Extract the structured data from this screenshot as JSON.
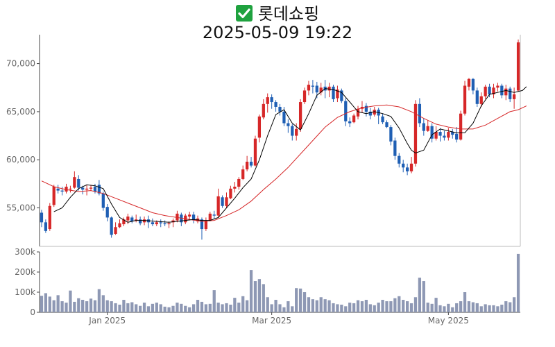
{
  "header": {
    "title_icon": "check-mark-icon",
    "title": "롯데쇼핑",
    "subtitle": "2025-05-09 19:22"
  },
  "colors": {
    "up": "#d62728",
    "down": "#1f5fb4",
    "ma_short": "#000000",
    "ma_long": "#d62728",
    "volume": "#8e98b4",
    "axis": "#666666"
  },
  "chart_data": {
    "type": "candlestick",
    "price_axis": {
      "ylim": [
        51000,
        73000
      ],
      "ticks": [
        55000,
        60000,
        65000,
        70000
      ],
      "tick_labels": [
        "55,000",
        "60,000",
        "65,000",
        "70,000"
      ]
    },
    "volume_axis": {
      "ylim": [
        0,
        300000
      ],
      "ticks": [
        0,
        100000,
        200000,
        300000
      ],
      "tick_labels": [
        "0",
        "100k",
        "200k",
        "300k"
      ]
    },
    "x_ticks": [
      {
        "index": 16,
        "label": "Jan 2025"
      },
      {
        "index": 56,
        "label": "Mar 2025"
      },
      {
        "index": 99,
        "label": "May 2025"
      }
    ],
    "candles": [
      [
        54500,
        53500,
        54800,
        53000,
        82000
      ],
      [
        53500,
        52600,
        53800,
        52400,
        95000
      ],
      [
        52800,
        55200,
        55500,
        52600,
        78000
      ],
      [
        55300,
        57200,
        57400,
        55100,
        60000
      ],
      [
        57000,
        56800,
        57400,
        56500,
        85000
      ],
      [
        56800,
        56700,
        57200,
        56300,
        55000
      ],
      [
        56700,
        57200,
        57500,
        56500,
        48000
      ],
      [
        57000,
        57000,
        57300,
        56600,
        108000
      ],
      [
        57100,
        58200,
        58800,
        57000,
        52000
      ],
      [
        58000,
        57100,
        58400,
        56800,
        70000
      ],
      [
        57100,
        56900,
        57300,
        56400,
        62000
      ],
      [
        56900,
        57000,
        57400,
        56300,
        55000
      ],
      [
        57000,
        57100,
        57400,
        56800,
        68000
      ],
      [
        57200,
        56700,
        57500,
        56500,
        60000
      ],
      [
        57400,
        56500,
        57900,
        56300,
        115000
      ],
      [
        56500,
        55000,
        56700,
        54700,
        85000
      ],
      [
        55100,
        54000,
        55400,
        53600,
        60000
      ],
      [
        54000,
        52200,
        54100,
        51900,
        55000
      ],
      [
        52300,
        53000,
        53500,
        52200,
        45000
      ],
      [
        53000,
        53400,
        53800,
        52900,
        38000
      ],
      [
        53300,
        53800,
        54000,
        53100,
        62000
      ],
      [
        53700,
        54100,
        54400,
        53300,
        45000
      ],
      [
        54000,
        53600,
        54200,
        53400,
        50000
      ],
      [
        53700,
        53800,
        54300,
        53500,
        40000
      ],
      [
        53800,
        53400,
        54100,
        53200,
        32000
      ],
      [
        53500,
        53800,
        54100,
        53200,
        48000
      ],
      [
        53800,
        53500,
        54200,
        52900,
        30000
      ],
      [
        53500,
        53300,
        53900,
        53100,
        42000
      ],
      [
        53300,
        53500,
        53700,
        53100,
        48000
      ],
      [
        53500,
        53400,
        53800,
        53000,
        40000
      ],
      [
        53400,
        53300,
        53700,
        53100,
        28000
      ],
      [
        53300,
        53400,
        53600,
        52900,
        25000
      ],
      [
        53500,
        53700,
        53900,
        53000,
        32000
      ],
      [
        53700,
        54400,
        54700,
        53500,
        48000
      ],
      [
        54300,
        53500,
        54500,
        53100,
        42000
      ],
      [
        53500,
        54200,
        54400,
        53300,
        32000
      ],
      [
        54100,
        54300,
        54600,
        53700,
        25000
      ],
      [
        54300,
        53700,
        54600,
        53400,
        40000
      ],
      [
        53600,
        53900,
        54200,
        53400,
        62000
      ],
      [
        53800,
        52800,
        54000,
        51700,
        52000
      ],
      [
        52800,
        53700,
        54000,
        52600,
        40000
      ],
      [
        53700,
        54400,
        54600,
        53600,
        42000
      ],
      [
        54300,
        54200,
        54700,
        53900,
        110000
      ],
      [
        54200,
        56200,
        57000,
        54000,
        48000
      ],
      [
        56100,
        55200,
        56300,
        55000,
        40000
      ],
      [
        55200,
        56100,
        56600,
        55000,
        45000
      ],
      [
        56000,
        57000,
        57300,
        55900,
        38000
      ],
      [
        57000,
        57200,
        57700,
        56600,
        72000
      ],
      [
        57200,
        58000,
        58200,
        56900,
        48000
      ],
      [
        58000,
        59000,
        59400,
        57900,
        80000
      ],
      [
        59000,
        59800,
        60400,
        58800,
        60000
      ],
      [
        59800,
        59400,
        60300,
        59200,
        210000
      ],
      [
        59400,
        62200,
        62500,
        59300,
        155000
      ],
      [
        62300,
        64500,
        64700,
        61800,
        165000
      ],
      [
        64400,
        65800,
        66300,
        64200,
        140000
      ],
      [
        65800,
        66500,
        66900,
        64900,
        75000
      ],
      [
        66500,
        66000,
        66800,
        65300,
        40000
      ],
      [
        66000,
        65500,
        66200,
        65000,
        62000
      ],
      [
        65500,
        65000,
        65800,
        64600,
        40000
      ],
      [
        65000,
        63800,
        65500,
        63500,
        25000
      ],
      [
        63800,
        63500,
        64200,
        62800,
        55000
      ],
      [
        63500,
        62500,
        63700,
        62000,
        30000
      ],
      [
        62500,
        63200,
        63800,
        62000,
        120000
      ],
      [
        63200,
        66000,
        66300,
        62900,
        118000
      ],
      [
        66000,
        67200,
        67500,
        65800,
        100000
      ],
      [
        67200,
        67800,
        68200,
        66700,
        75000
      ],
      [
        67700,
        67600,
        68300,
        66900,
        65000
      ],
      [
        67700,
        67000,
        68100,
        66400,
        60000
      ],
      [
        67000,
        67500,
        68000,
        66700,
        75000
      ],
      [
        67600,
        67200,
        68300,
        66400,
        65000
      ],
      [
        67200,
        67600,
        68000,
        66500,
        60000
      ],
      [
        67600,
        66300,
        67800,
        66000,
        45000
      ],
      [
        66400,
        67300,
        67700,
        66000,
        40000
      ],
      [
        67200,
        66100,
        67400,
        65900,
        38000
      ],
      [
        66100,
        64000,
        66400,
        63500,
        30000
      ],
      [
        64000,
        63800,
        64400,
        63400,
        48000
      ],
      [
        63900,
        64600,
        64800,
        63800,
        45000
      ],
      [
        64500,
        65300,
        65600,
        64200,
        60000
      ],
      [
        65300,
        65500,
        66100,
        64900,
        55000
      ],
      [
        65600,
        65000,
        65900,
        64500,
        62000
      ],
      [
        65000,
        64600,
        65400,
        64200,
        40000
      ],
      [
        64700,
        65200,
        65500,
        64500,
        35000
      ],
      [
        65200,
        64600,
        65400,
        63700,
        48000
      ],
      [
        64500,
        63900,
        64800,
        63700,
        62000
      ],
      [
        63900,
        63400,
        64100,
        63300,
        55000
      ],
      [
        63400,
        61900,
        63600,
        61500,
        55000
      ],
      [
        62000,
        60400,
        62300,
        60000,
        70000
      ],
      [
        60400,
        59600,
        60700,
        59200,
        80000
      ],
      [
        59600,
        59200,
        60000,
        58700,
        62000
      ],
      [
        59200,
        58800,
        59600,
        58400,
        55000
      ],
      [
        58800,
        59600,
        60300,
        58600,
        45000
      ],
      [
        59600,
        65800,
        66200,
        59300,
        75000
      ],
      [
        65800,
        63800,
        66400,
        63400,
        172000
      ],
      [
        63800,
        63000,
        64300,
        62500,
        155000
      ],
      [
        63000,
        63500,
        64100,
        62900,
        48000
      ],
      [
        63500,
        62200,
        63800,
        61800,
        42000
      ],
      [
        62200,
        62900,
        63500,
        62000,
        72000
      ],
      [
        62900,
        62500,
        63300,
        61900,
        35000
      ],
      [
        62500,
        62300,
        63000,
        62000,
        30000
      ],
      [
        62300,
        62900,
        63300,
        62000,
        42000
      ],
      [
        62900,
        62600,
        63200,
        62200,
        25000
      ],
      [
        62700,
        62100,
        63400,
        61800,
        45000
      ],
      [
        62100,
        64800,
        65100,
        62000,
        55000
      ],
      [
        64800,
        67700,
        68200,
        64600,
        100000
      ],
      [
        67600,
        68400,
        68500,
        67200,
        55000
      ],
      [
        68400,
        67200,
        68500,
        66800,
        50000
      ],
      [
        67200,
        65800,
        67500,
        65500,
        45000
      ],
      [
        65800,
        66600,
        67000,
        65500,
        30000
      ],
      [
        66600,
        67600,
        67800,
        66300,
        40000
      ],
      [
        67600,
        66800,
        67900,
        66500,
        35000
      ],
      [
        66800,
        67500,
        67900,
        66400,
        35000
      ],
      [
        67500,
        67700,
        68000,
        67100,
        30000
      ],
      [
        67700,
        66700,
        67900,
        66400,
        38000
      ],
      [
        66700,
        67400,
        67800,
        66200,
        55000
      ],
      [
        67400,
        66300,
        67600,
        66000,
        50000
      ],
      [
        66300,
        66800,
        67500,
        65300,
        75000
      ],
      [
        67200,
        72200,
        72500,
        67100,
        290000
      ]
    ],
    "ma_short": [
      [
        3,
        54600
      ],
      [
        5,
        55000
      ],
      [
        7,
        56100
      ],
      [
        9,
        57000
      ],
      [
        11,
        57400
      ],
      [
        13,
        57300
      ],
      [
        15,
        57000
      ],
      [
        17,
        55400
      ],
      [
        19,
        54000
      ],
      [
        21,
        53500
      ],
      [
        23,
        53700
      ],
      [
        25,
        53700
      ],
      [
        28,
        53600
      ],
      [
        31,
        53500
      ],
      [
        33,
        53600
      ],
      [
        35,
        53700
      ],
      [
        37,
        53800
      ],
      [
        39,
        53700
      ],
      [
        41,
        53700
      ],
      [
        43,
        54000
      ],
      [
        45,
        55000
      ],
      [
        47,
        56000
      ],
      [
        49,
        57100
      ],
      [
        51,
        58000
      ],
      [
        53,
        60000
      ],
      [
        55,
        62500
      ],
      [
        57,
        64700
      ],
      [
        59,
        65200
      ],
      [
        61,
        63800
      ],
      [
        63,
        63100
      ],
      [
        65,
        64800
      ],
      [
        67,
        66700
      ],
      [
        69,
        67400
      ],
      [
        71,
        67300
      ],
      [
        73,
        67000
      ],
      [
        75,
        66000
      ],
      [
        77,
        65000
      ],
      [
        79,
        64800
      ],
      [
        81,
        65000
      ],
      [
        83,
        64800
      ],
      [
        85,
        64500
      ],
      [
        87,
        63300
      ],
      [
        89,
        61700
      ],
      [
        90,
        61000
      ],
      [
        91,
        60700
      ],
      [
        93,
        61000
      ],
      [
        95,
        62600
      ],
      [
        97,
        63200
      ],
      [
        99,
        63000
      ],
      [
        101,
        62800
      ],
      [
        103,
        62800
      ],
      [
        105,
        63800
      ],
      [
        107,
        65600
      ],
      [
        109,
        66800
      ],
      [
        111,
        67000
      ],
      [
        113,
        67200
      ],
      [
        115,
        67000
      ],
      [
        117,
        67200
      ],
      [
        118,
        67600
      ]
    ],
    "ma_long": [
      [
        0,
        57800
      ],
      [
        3,
        57200
      ],
      [
        6,
        56900
      ],
      [
        9,
        56700
      ],
      [
        12,
        56800
      ],
      [
        15,
        56500
      ],
      [
        18,
        56000
      ],
      [
        21,
        55500
      ],
      [
        24,
        55000
      ],
      [
        27,
        54500
      ],
      [
        30,
        54200
      ],
      [
        33,
        54000
      ],
      [
        36,
        53800
      ],
      [
        39,
        53600
      ],
      [
        42,
        53700
      ],
      [
        45,
        54200
      ],
      [
        48,
        54800
      ],
      [
        51,
        55700
      ],
      [
        54,
        56900
      ],
      [
        57,
        58000
      ],
      [
        60,
        59200
      ],
      [
        63,
        60600
      ],
      [
        66,
        62000
      ],
      [
        69,
        63400
      ],
      [
        72,
        64400
      ],
      [
        75,
        65000
      ],
      [
        78,
        65400
      ],
      [
        81,
        65600
      ],
      [
        84,
        65700
      ],
      [
        87,
        65500
      ],
      [
        90,
        65000
      ],
      [
        93,
        64300
      ],
      [
        96,
        63700
      ],
      [
        99,
        63400
      ],
      [
        102,
        63200
      ],
      [
        105,
        63200
      ],
      [
        108,
        63600
      ],
      [
        111,
        64300
      ],
      [
        114,
        65000
      ],
      [
        116,
        65200
      ],
      [
        118,
        65600
      ]
    ]
  }
}
